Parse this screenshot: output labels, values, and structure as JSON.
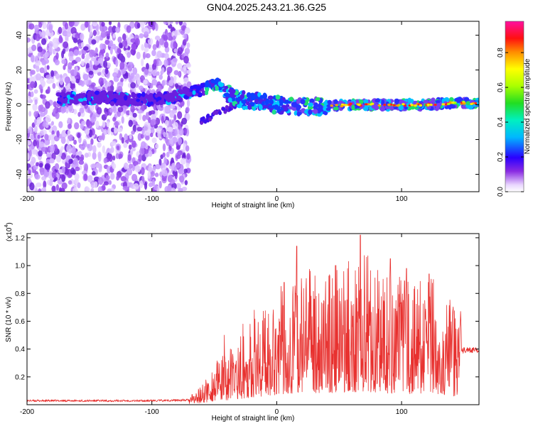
{
  "title": "GN04.2025.243.21.36.G25",
  "chart_data": [
    {
      "type": "heatmap",
      "xlabel": "Height of straight line (km)",
      "ylabel": "Frequency (Hz)",
      "xlim": [
        -200,
        162
      ],
      "ylim": [
        -50,
        48
      ],
      "xticks": [
        -200,
        -100,
        0,
        100
      ],
      "yticks": [
        -40,
        -20,
        0,
        20,
        40
      ],
      "colorbar": {
        "label": "Normalized spectral amplitude",
        "ticks": [
          "0.0",
          "0.2",
          "0.4",
          "0.6",
          "0.8"
        ],
        "range": [
          0,
          0.98
        ]
      },
      "ridge": {
        "x": [
          -200,
          -175,
          -160,
          -140,
          -120,
          -100,
          -85,
          -75,
          -65,
          -55,
          -48,
          -44,
          -40,
          -35,
          -30,
          -20,
          -10,
          0,
          20,
          40,
          60,
          80,
          100,
          120,
          140,
          162
        ],
        "y": [
          2,
          3,
          4,
          4,
          3,
          3,
          4,
          6,
          8,
          10,
          12,
          10,
          7,
          4,
          3,
          2,
          1,
          0,
          -1,
          -1,
          0,
          0,
          0,
          0,
          1,
          1
        ]
      },
      "noise_region_x": [
        -200,
        -70
      ]
    },
    {
      "type": "line",
      "xlabel": "Height of straight line (km)",
      "ylabel": "SNR (10 * v/v)",
      "scale_label": "(x10",
      "scale_exp": "4",
      "xlim": [
        -200,
        162
      ],
      "ylim": [
        0,
        1.23
      ],
      "xticks": [
        -200,
        -100,
        0,
        100
      ],
      "yticks": [
        0.2,
        0.4,
        0.6,
        0.8,
        1.0,
        1.2
      ],
      "line_color": "#e8312f",
      "envelope": {
        "x": [
          -200,
          -100,
          -70,
          -60,
          -50,
          -40,
          -30,
          -20,
          -10,
          0,
          10,
          20,
          30,
          40,
          50,
          60,
          70,
          80,
          90,
          100,
          110,
          120,
          130,
          140,
          145,
          150,
          162
        ],
        "y": [
          0.03,
          0.03,
          0.035,
          0.08,
          0.17,
          0.22,
          0.28,
          0.35,
          0.42,
          0.48,
          0.52,
          0.55,
          0.57,
          0.56,
          0.58,
          0.6,
          0.64,
          0.58,
          0.55,
          0.52,
          0.5,
          0.55,
          0.5,
          0.42,
          0.38,
          0.4,
          0.4
        ]
      },
      "spikes": [
        {
          "x": -42,
          "y": 0.5
        },
        {
          "x": -27,
          "y": 0.58
        },
        {
          "x": -18,
          "y": 0.68
        },
        {
          "x": 6,
          "y": 0.88
        },
        {
          "x": 15,
          "y": 0.8
        },
        {
          "x": 16,
          "y": 1.14
        },
        {
          "x": 30,
          "y": 0.76
        },
        {
          "x": 41,
          "y": 0.72
        },
        {
          "x": 55,
          "y": 0.75
        },
        {
          "x": 67,
          "y": 1.22
        },
        {
          "x": 72,
          "y": 1.06
        },
        {
          "x": 85,
          "y": 0.56
        },
        {
          "x": 91,
          "y": 1.05
        },
        {
          "x": 104,
          "y": 0.98
        },
        {
          "x": 122,
          "y": 0.94
        },
        {
          "x": 140,
          "y": 0.5
        }
      ]
    }
  ]
}
